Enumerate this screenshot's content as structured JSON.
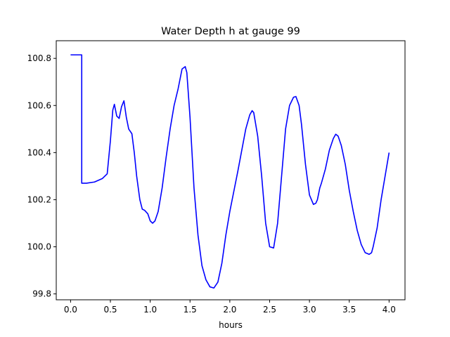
{
  "chart_data": {
    "type": "line",
    "title": "Water Depth h at gauge 99",
    "xlabel": "hours",
    "ylabel": "",
    "xlim": [
      -0.18,
      4.2
    ],
    "ylim": [
      99.775,
      100.875
    ],
    "xticks": [
      0.0,
      0.5,
      1.0,
      1.5,
      2.0,
      2.5,
      3.0,
      3.5,
      4.0
    ],
    "xtick_labels": [
      "0.0",
      "0.5",
      "1.0",
      "1.5",
      "2.0",
      "2.5",
      "3.0",
      "3.5",
      "4.0"
    ],
    "yticks": [
      99.8,
      100.0,
      100.2,
      100.4,
      100.6,
      100.8
    ],
    "ytick_labels": [
      "99.8",
      "100.0",
      "100.2",
      "100.4",
      "100.6",
      "100.8"
    ],
    "grid": false,
    "legend": "none",
    "series": [
      {
        "color": "#0000ff",
        "x": [
          0.0,
          0.14,
          0.14,
          0.2,
          0.3,
          0.4,
          0.46,
          0.5,
          0.53,
          0.55,
          0.58,
          0.61,
          0.64,
          0.67,
          0.7,
          0.73,
          0.77,
          0.8,
          0.83,
          0.87,
          0.9,
          0.93,
          0.97,
          1.0,
          1.03,
          1.06,
          1.1,
          1.15,
          1.2,
          1.25,
          1.3,
          1.35,
          1.4,
          1.44,
          1.46,
          1.5,
          1.55,
          1.6,
          1.65,
          1.7,
          1.75,
          1.8,
          1.85,
          1.9,
          1.95,
          2.0,
          2.1,
          2.2,
          2.25,
          2.28,
          2.3,
          2.35,
          2.4,
          2.45,
          2.5,
          2.55,
          2.6,
          2.65,
          2.7,
          2.75,
          2.8,
          2.83,
          2.87,
          2.9,
          2.95,
          3.0,
          3.05,
          3.08,
          3.1,
          3.13,
          3.15,
          3.2,
          3.25,
          3.3,
          3.33,
          3.36,
          3.4,
          3.45,
          3.5,
          3.55,
          3.6,
          3.65,
          3.7,
          3.75,
          3.78,
          3.8,
          3.85,
          3.9,
          3.95,
          4.0
        ],
        "y": [
          100.815,
          100.815,
          100.27,
          100.27,
          100.275,
          100.29,
          100.31,
          100.45,
          100.58,
          100.605,
          100.555,
          100.545,
          100.595,
          100.62,
          100.55,
          100.5,
          100.48,
          100.4,
          100.3,
          100.2,
          100.16,
          100.155,
          100.14,
          100.11,
          100.1,
          100.11,
          100.15,
          100.25,
          100.38,
          100.5,
          100.6,
          100.67,
          100.755,
          100.765,
          100.74,
          100.55,
          100.25,
          100.05,
          99.92,
          99.86,
          99.83,
          99.825,
          99.85,
          99.93,
          100.05,
          100.15,
          100.32,
          100.5,
          100.56,
          100.578,
          100.57,
          100.47,
          100.3,
          100.1,
          100.0,
          99.995,
          100.1,
          100.3,
          100.5,
          100.6,
          100.635,
          100.638,
          100.6,
          100.52,
          100.35,
          100.22,
          100.18,
          100.185,
          100.2,
          100.25,
          100.27,
          100.33,
          100.41,
          100.46,
          100.478,
          100.47,
          100.43,
          100.35,
          100.24,
          100.15,
          100.07,
          100.01,
          99.975,
          99.968,
          99.975,
          100.0,
          100.08,
          100.2,
          100.3,
          100.4
        ]
      }
    ]
  }
}
